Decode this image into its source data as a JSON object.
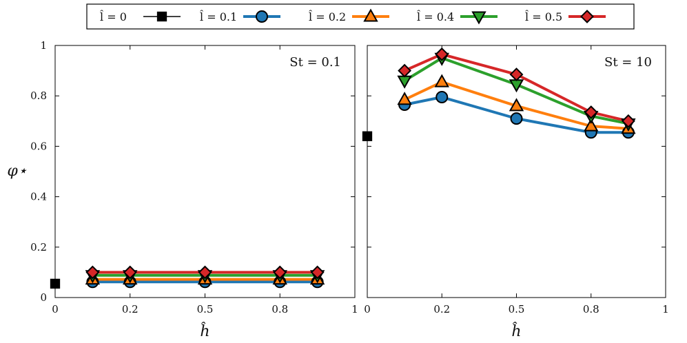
{
  "chart_data": [
    {
      "type": "line",
      "annotation": "St = 0.1",
      "xlabel": "ĥ",
      "ylabel": "φ⋆",
      "xlim": [
        0,
        1
      ],
      "ylim": [
        0,
        1
      ],
      "xticks": [
        "0",
        "0.2",
        "0.5",
        "0.8",
        "1"
      ],
      "yticks": [
        "0",
        "0.2",
        "0.4",
        "0.6",
        "0.8",
        "1"
      ],
      "x": [
        0.1,
        0.2,
        0.5,
        0.8,
        0.9
      ],
      "series": [
        {
          "name": "l̂ = 0",
          "color": "#000000",
          "marker": "square",
          "x": [
            0
          ],
          "values": [
            0.055
          ]
        },
        {
          "name": "l̂ = 0.1",
          "color": "#1f77b4",
          "marker": "circle",
          "values": [
            0.062,
            0.062,
            0.062,
            0.062,
            0.062
          ]
        },
        {
          "name": "l̂ = 0.2",
          "color": "#ff7f0e",
          "marker": "triangle-up",
          "values": [
            0.072,
            0.072,
            0.072,
            0.072,
            0.072
          ]
        },
        {
          "name": "l̂ = 0.4",
          "color": "#2ca02c",
          "marker": "triangle-down",
          "values": [
            0.088,
            0.088,
            0.088,
            0.088,
            0.088
          ]
        },
        {
          "name": "l̂ = 0.5",
          "color": "#d62728",
          "marker": "diamond",
          "values": [
            0.1,
            0.1,
            0.1,
            0.1,
            0.1
          ]
        }
      ]
    },
    {
      "type": "line",
      "annotation": "St = 10",
      "xlabel": "ĥ",
      "xlim": [
        0,
        1
      ],
      "ylim": [
        0,
        1
      ],
      "xticks": [
        "0",
        "0.2",
        "0.5",
        "0.8",
        "1"
      ],
      "x": [
        0.1,
        0.2,
        0.5,
        0.8,
        0.9
      ],
      "series": [
        {
          "name": "l̂ = 0",
          "color": "#000000",
          "marker": "square",
          "x": [
            0
          ],
          "values": [
            0.64
          ]
        },
        {
          "name": "l̂ = 0.1",
          "color": "#1f77b4",
          "marker": "circle",
          "values": [
            0.765,
            0.795,
            0.71,
            0.655,
            0.655
          ]
        },
        {
          "name": "l̂ = 0.2",
          "color": "#ff7f0e",
          "marker": "triangle-up",
          "values": [
            0.785,
            0.855,
            0.76,
            0.68,
            0.67
          ]
        },
        {
          "name": "l̂ = 0.4",
          "color": "#2ca02c",
          "marker": "triangle-down",
          "values": [
            0.86,
            0.95,
            0.845,
            0.72,
            0.69
          ]
        },
        {
          "name": "l̂ = 0.5",
          "color": "#d62728",
          "marker": "diamond",
          "values": [
            0.9,
            0.965,
            0.885,
            0.735,
            0.7
          ]
        }
      ]
    }
  ],
  "legend": {
    "placement": "top-center",
    "entries": [
      {
        "label": "l̂ = 0",
        "marker": "square",
        "color": "#000000"
      },
      {
        "label": "l̂ = 0.1",
        "marker": "circle",
        "color": "#1f77b4"
      },
      {
        "label": "l̂ = 0.2",
        "marker": "triangle-up",
        "color": "#ff7f0e"
      },
      {
        "label": "l̂ = 0.4",
        "marker": "triangle-down",
        "color": "#2ca02c"
      },
      {
        "label": "l̂ = 0.5",
        "marker": "diamond",
        "color": "#d62728"
      }
    ]
  }
}
